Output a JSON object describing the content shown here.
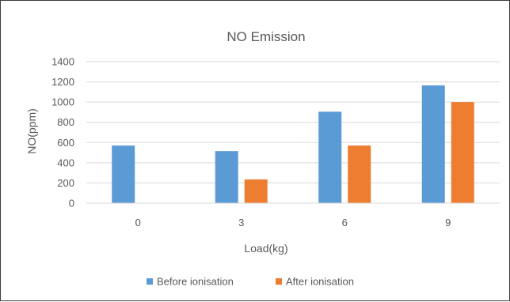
{
  "chart_data": {
    "type": "bar",
    "title": "NO Emission",
    "xlabel": "Load(kg)",
    "ylabel": "NO(ppm)",
    "categories": [
      "0",
      "3",
      "6",
      "9"
    ],
    "series": [
      {
        "name": "Before ionisation",
        "color": "#5b9bd5",
        "values": [
          570,
          515,
          905,
          1165
        ]
      },
      {
        "name": "After ionisation",
        "color": "#ed7d31",
        "values": [
          0,
          235,
          570,
          1000
        ]
      }
    ],
    "ylim": [
      0,
      1400
    ],
    "yticks": [
      "0",
      "200",
      "400",
      "600",
      "800",
      "1000",
      "1200",
      "1400"
    ],
    "grid": true,
    "legend_position": "bottom"
  }
}
